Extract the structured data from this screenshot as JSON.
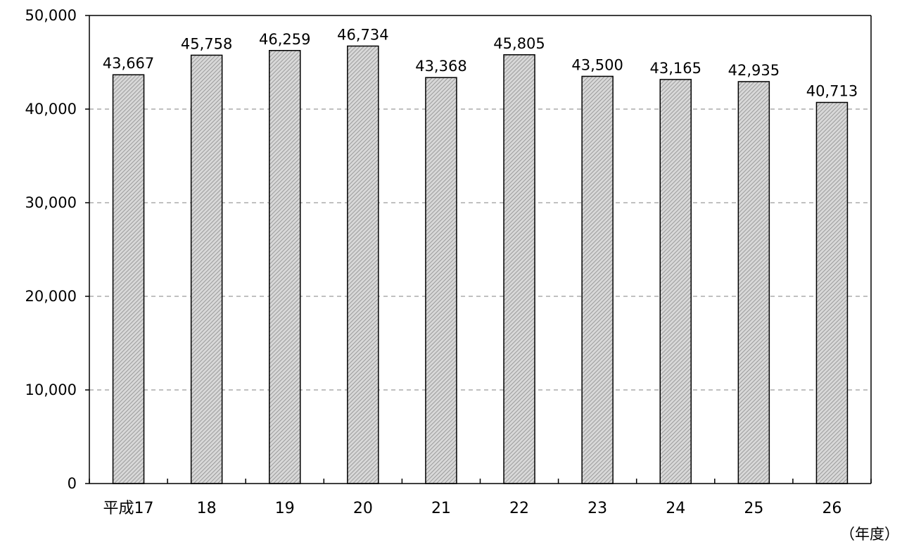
{
  "chart_data": {
    "type": "bar",
    "categories": [
      "平成17",
      "18",
      "19",
      "20",
      "21",
      "22",
      "23",
      "24",
      "25",
      "26"
    ],
    "values": [
      43667,
      45758,
      46259,
      46734,
      43368,
      45805,
      43500,
      43165,
      42935,
      40713
    ],
    "value_labels": [
      "43,667",
      "45,758",
      "46,259",
      "46,734",
      "43,368",
      "45,805",
      "43,500",
      "43,165",
      "42,935",
      "40,713"
    ],
    "y_ticks": [
      0,
      10000,
      20000,
      30000,
      40000,
      50000
    ],
    "y_tick_labels": [
      "0",
      "10,000",
      "20,000",
      "30,000",
      "40,000",
      "50,000"
    ],
    "ylim": [
      0,
      50000
    ],
    "x_unit_label": "（年度）",
    "title": "",
    "xlabel": "",
    "ylabel": "",
    "grid": "horizontal dashed",
    "legend": "none",
    "colors": {
      "bar_fill": "#d8d8d8",
      "bar_hatch": "#8c8c8c",
      "bar_stroke": "#000000",
      "grid": "#9a9a9a",
      "axis": "#000000"
    }
  }
}
